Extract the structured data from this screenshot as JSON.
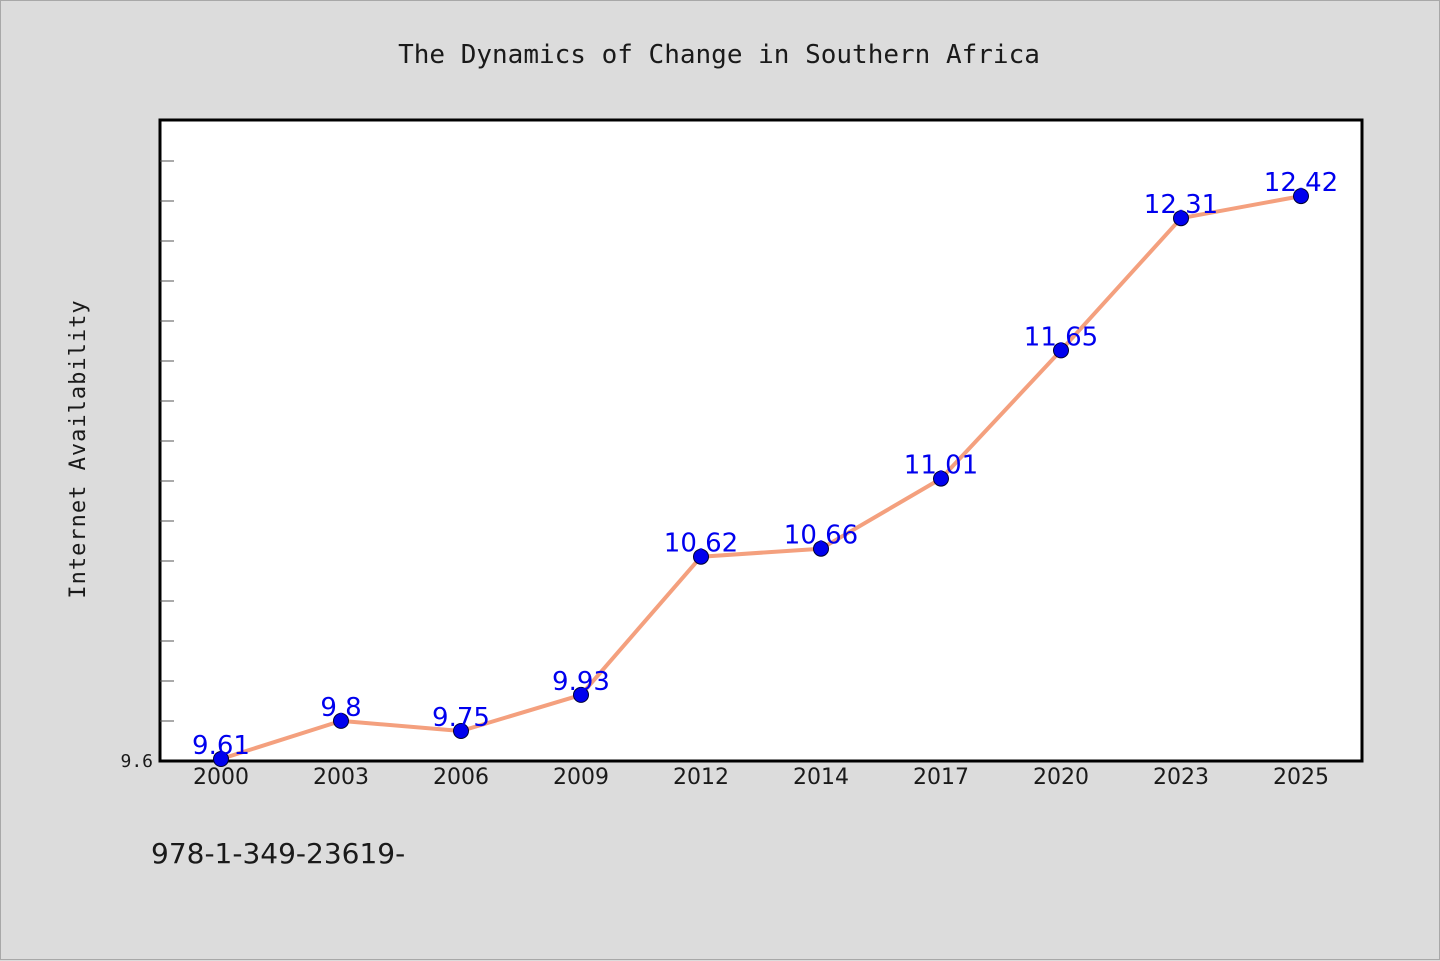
{
  "chart_data": {
    "type": "line",
    "title": "The Dynamics of Change in Southern Africa",
    "xlabel": "",
    "ylabel": "Internet Availability",
    "categories": [
      "2000",
      "2003",
      "2006",
      "2009",
      "2012",
      "2014",
      "2017",
      "2020",
      "2023",
      "2025"
    ],
    "series": [
      {
        "values": [
          9.61,
          9.8,
          9.75,
          9.93,
          10.62,
          10.66,
          11.01,
          11.65,
          12.31,
          12.42
        ],
        "labels": [
          "9.61",
          "9.8",
          "9.75",
          "9.93",
          "10.62",
          "10.66",
          "11.01",
          "11.65",
          "12.31",
          "12.42"
        ],
        "line_color": "#f4a07e",
        "marker_color": "#0000ee"
      }
    ],
    "ylim": [
      9.6,
      12.8
    ],
    "ytick_labels": [
      "9.6"
    ],
    "grid": false,
    "legend": "none",
    "footer": "978-1-349-23619-"
  }
}
